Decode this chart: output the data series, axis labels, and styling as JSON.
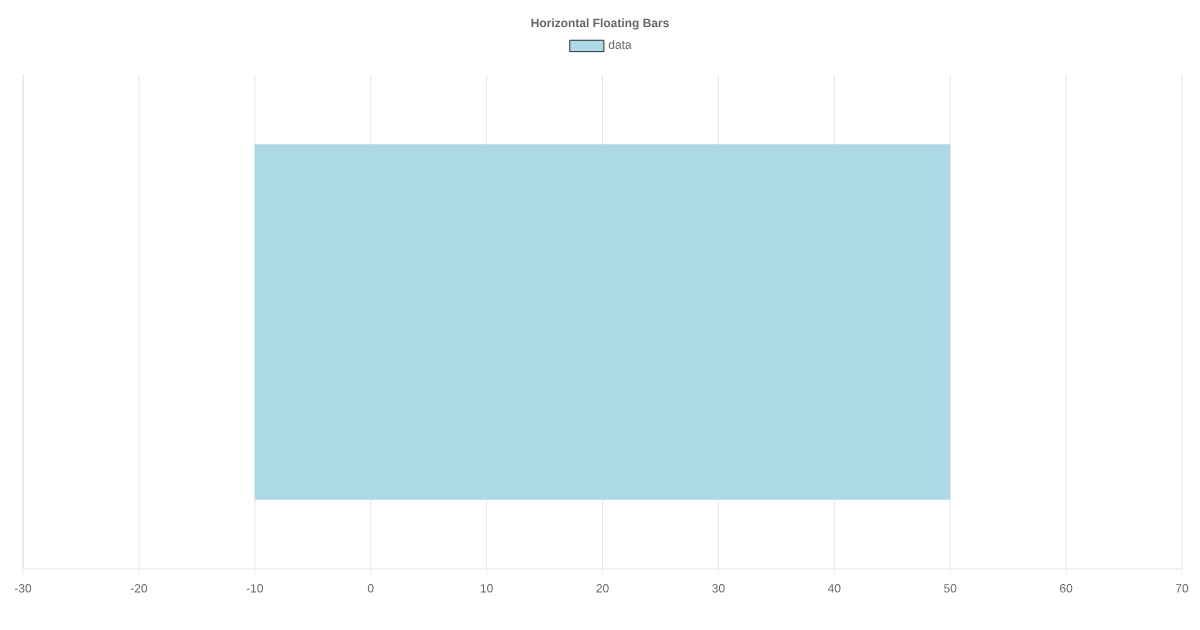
{
  "chart_data": {
    "type": "bar",
    "orientation": "horizontal",
    "title": "Horizontal Floating Bars",
    "categories": [
      null
    ],
    "series": [
      {
        "name": "data",
        "color": "#add8e6",
        "values": [
          60
        ],
        "base": [
          -10
        ]
      }
    ],
    "xlim": [
      -30,
      70
    ],
    "xticks": [
      -30,
      -20,
      -10,
      0,
      10,
      20,
      30,
      40,
      50,
      60,
      70
    ],
    "grid": "x",
    "legend": "top",
    "tick_labels": "x"
  }
}
